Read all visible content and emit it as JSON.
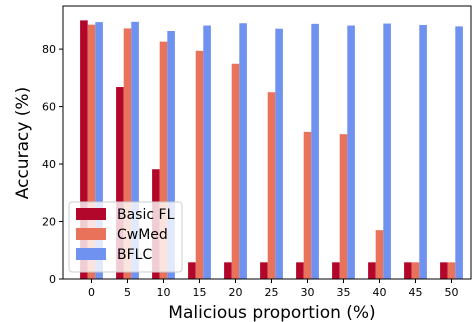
{
  "chart_data": {
    "type": "bar",
    "xlabel": "Malicious proportion (%)",
    "ylabel": "Accuracy (%)",
    "categories": [
      "0",
      "5",
      "10",
      "15",
      "20",
      "25",
      "30",
      "35",
      "40",
      "45",
      "50"
    ],
    "ylim": [
      0,
      95
    ],
    "yticks": [
      0,
      20,
      40,
      60,
      80
    ],
    "grid": false,
    "legend_position": "lower-left",
    "series": [
      {
        "name": "Basic FL",
        "color": "#b2062a",
        "values": [
          90.0,
          66.8,
          38.2,
          5.8,
          5.8,
          5.8,
          5.8,
          5.8,
          5.8,
          5.8,
          5.8
        ]
      },
      {
        "name": "CwMed",
        "color": "#e8735a",
        "values": [
          88.5,
          87.2,
          82.6,
          79.4,
          74.9,
          65.0,
          51.2,
          50.4,
          17.0,
          5.8,
          5.8
        ]
      },
      {
        "name": "BFLC",
        "color": "#6f92f0",
        "values": [
          89.4,
          89.5,
          86.3,
          88.2,
          89.0,
          87.1,
          88.8,
          88.2,
          88.9,
          88.4,
          87.9
        ]
      }
    ]
  }
}
